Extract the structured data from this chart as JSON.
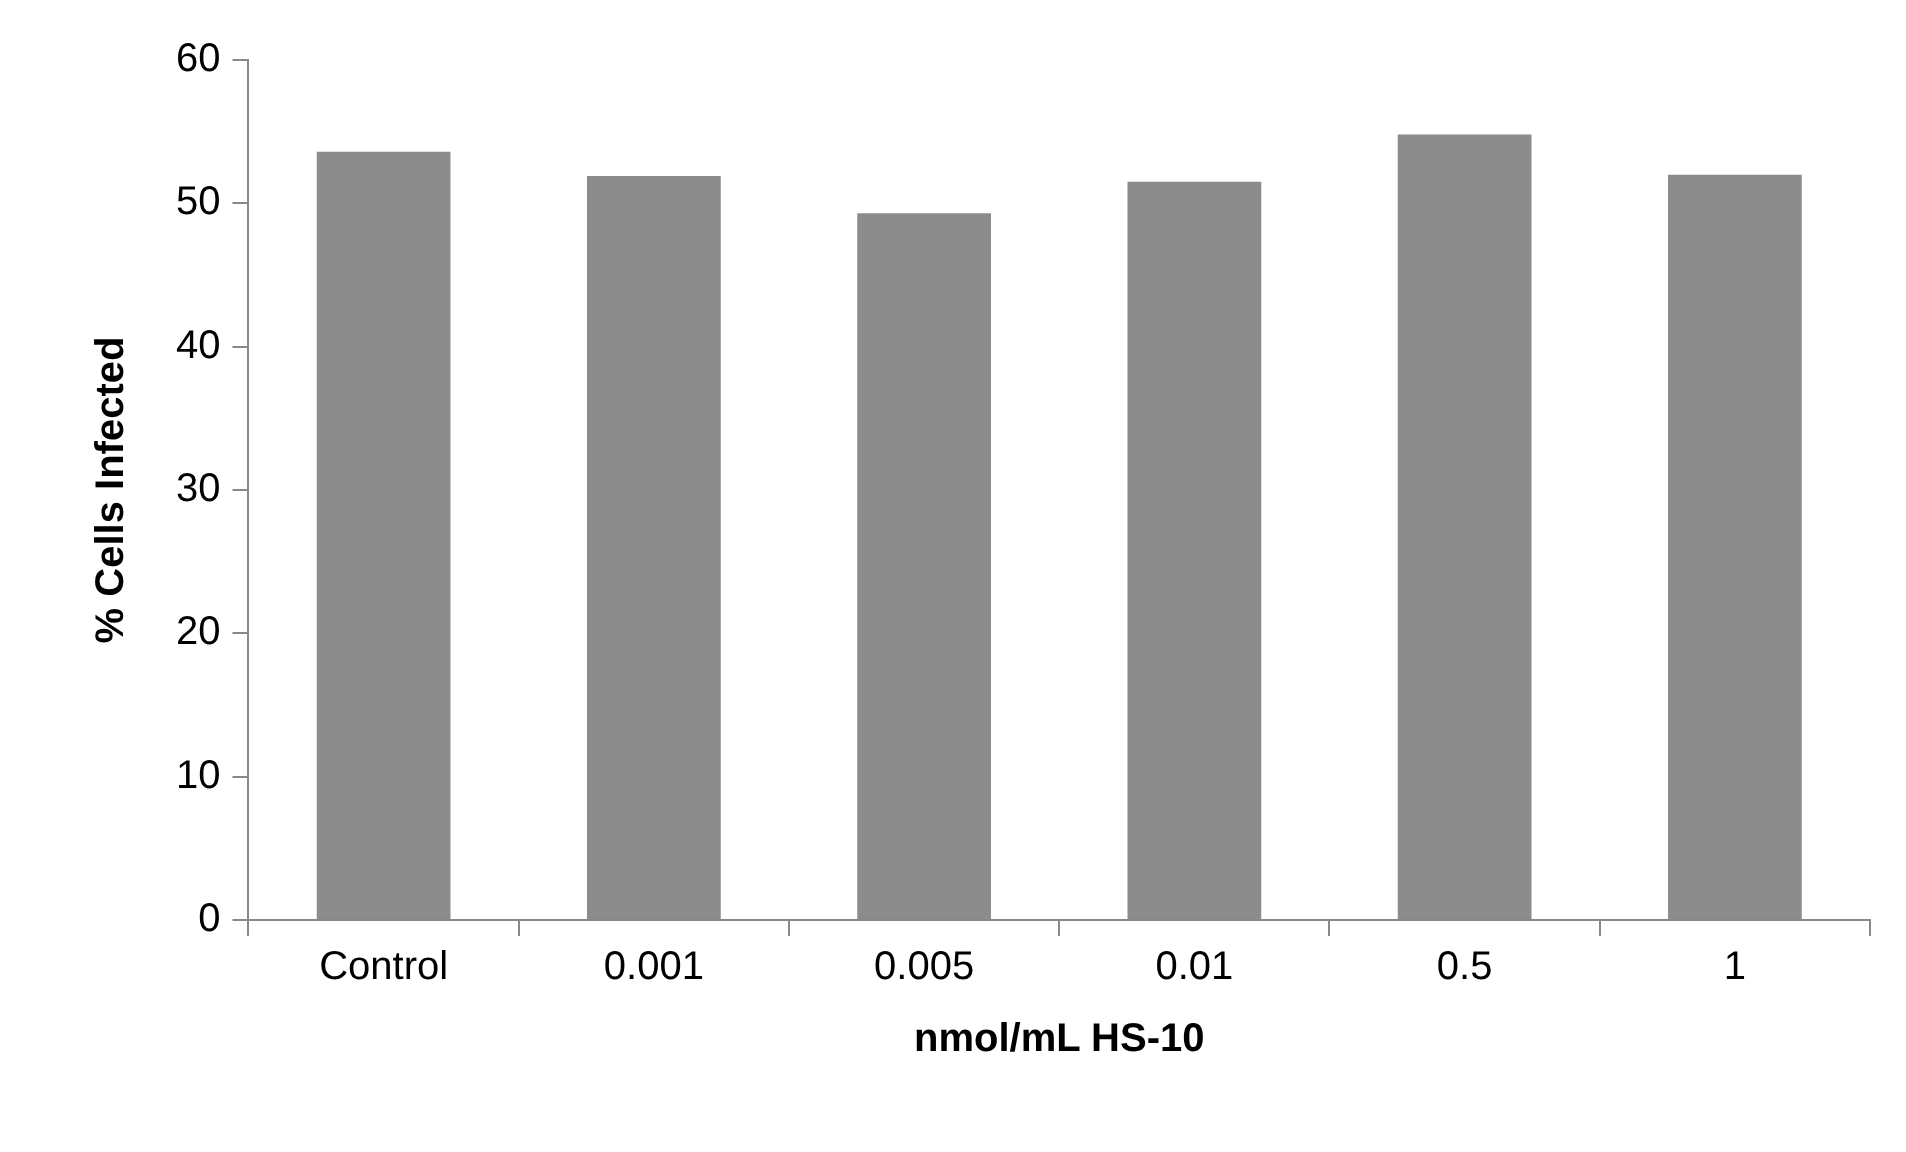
{
  "chart_data": {
    "type": "bar",
    "xlabel": "nmol/mL HS-10",
    "ylabel": "% Cells Infected",
    "categories": [
      "Control",
      "0.001",
      "0.005",
      "0.01",
      "0.5",
      "1"
    ],
    "values": [
      53.6,
      51.9,
      49.3,
      51.5,
      54.8,
      52.0
    ],
    "color": "#8c8c8c",
    "ylim": [
      0,
      60
    ],
    "yticks": [
      0,
      10,
      20,
      30,
      40,
      50,
      60
    ],
    "grid": false,
    "legend": false
  }
}
